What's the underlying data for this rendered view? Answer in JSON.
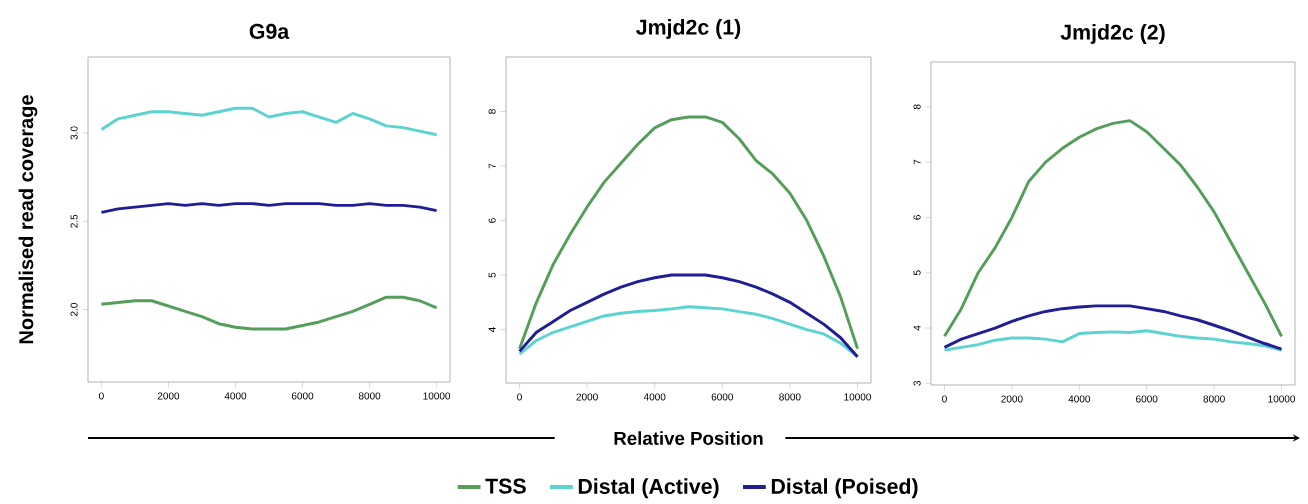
{
  "chart_data": [
    {
      "type": "line",
      "title": "G9a",
      "ylabel": "Normalised read coverage",
      "xlim": [
        -400,
        10400
      ],
      "ylim": [
        1.59,
        3.43
      ],
      "xticks": [
        0,
        2000,
        4000,
        6000,
        8000,
        10000
      ],
      "yticks": [
        {
          "value": 2,
          "label": "2.0"
        },
        {
          "value": 2.5,
          "label": "2.5"
        },
        {
          "value": 3,
          "label": "3.0"
        }
      ],
      "x": [
        0,
        500,
        1000,
        1500,
        2000,
        2500,
        3000,
        3500,
        4000,
        4500,
        5000,
        5500,
        6000,
        6500,
        7000,
        7500,
        8000,
        8500,
        9000,
        9500,
        10000
      ],
      "series": [
        {
          "color": "#559e5a",
          "values": [
            2.03,
            2.04,
            2.05,
            2.05,
            2.02,
            1.99,
            1.96,
            1.92,
            1.9,
            1.89,
            1.89,
            1.89,
            1.91,
            1.93,
            1.96,
            1.99,
            2.03,
            2.07,
            2.07,
            2.05,
            2.01
          ]
        },
        {
          "color": "#5bd3d0",
          "values": [
            3.02,
            3.08,
            3.1,
            3.12,
            3.12,
            3.11,
            3.1,
            3.12,
            3.14,
            3.14,
            3.09,
            3.11,
            3.12,
            3.09,
            3.06,
            3.11,
            3.08,
            3.04,
            3.03,
            3.01,
            2.99
          ]
        },
        {
          "color": "#1f1e96",
          "values": [
            2.55,
            2.57,
            2.58,
            2.59,
            2.6,
            2.59,
            2.6,
            2.59,
            2.6,
            2.6,
            2.59,
            2.6,
            2.6,
            2.6,
            2.59,
            2.59,
            2.6,
            2.59,
            2.59,
            2.58,
            2.56
          ]
        }
      ]
    },
    {
      "type": "line",
      "title": "Jmjd2c (1)",
      "xlabel": "Relative Position",
      "legend": "bottom",
      "xlim": [
        -400,
        10400
      ],
      "ylim": [
        3.02,
        9.0
      ],
      "xticks": [
        0,
        2000,
        4000,
        6000,
        8000,
        10000
      ],
      "yticks": [
        4,
        5,
        6,
        7,
        8
      ],
      "x": [
        0,
        500,
        1000,
        1500,
        2000,
        2500,
        3000,
        3500,
        4000,
        4500,
        5000,
        5500,
        6000,
        6500,
        7000,
        7500,
        8000,
        8500,
        9000,
        9500,
        10000
      ],
      "series": [
        {
          "name": "TSS",
          "color": "#559e5a",
          "values": [
            3.65,
            4.5,
            5.2,
            5.75,
            6.25,
            6.7,
            7.05,
            7.4,
            7.7,
            7.85,
            7.9,
            7.9,
            7.8,
            7.5,
            7.1,
            6.85,
            6.5,
            6.0,
            5.35,
            4.6,
            3.65
          ]
        },
        {
          "name": "Distal (Active)",
          "color": "#5bd3d0",
          "values": [
            3.55,
            3.8,
            3.95,
            4.05,
            4.15,
            4.25,
            4.3,
            4.33,
            4.35,
            4.38,
            4.42,
            4.4,
            4.38,
            4.33,
            4.28,
            4.2,
            4.1,
            4.0,
            3.92,
            3.75,
            3.5
          ]
        },
        {
          "name": "Distal (Poised)",
          "color": "#1f1e96",
          "values": [
            3.6,
            3.95,
            4.15,
            4.35,
            4.5,
            4.65,
            4.78,
            4.88,
            4.95,
            5.0,
            5.0,
            5.0,
            4.95,
            4.88,
            4.78,
            4.65,
            4.5,
            4.3,
            4.1,
            3.85,
            3.5
          ]
        }
      ]
    },
    {
      "type": "line",
      "title": "Jmjd2c (2)",
      "xlim": [
        -400,
        10400
      ],
      "ylim": [
        2.97,
        8.81
      ],
      "xticks": [
        0,
        2000,
        4000,
        6000,
        8000,
        10000
      ],
      "yticks": [
        3,
        4,
        5,
        6,
        7,
        8
      ],
      "x": [
        0,
        500,
        1000,
        1500,
        2000,
        2500,
        3000,
        3500,
        4000,
        4500,
        5000,
        5500,
        6000,
        6500,
        7000,
        7500,
        8000,
        8500,
        9000,
        9500,
        10000
      ],
      "series": [
        {
          "color": "#559e5a",
          "values": [
            3.85,
            4.35,
            5.0,
            5.45,
            6.0,
            6.65,
            7.0,
            7.25,
            7.45,
            7.6,
            7.7,
            7.75,
            7.55,
            7.25,
            6.95,
            6.55,
            6.1,
            5.55,
            5.0,
            4.45,
            3.85
          ]
        },
        {
          "color": "#5bd3d0",
          "values": [
            3.6,
            3.65,
            3.7,
            3.78,
            3.82,
            3.82,
            3.8,
            3.75,
            3.9,
            3.92,
            3.93,
            3.92,
            3.95,
            3.9,
            3.85,
            3.82,
            3.8,
            3.75,
            3.72,
            3.68,
            3.6
          ]
        },
        {
          "color": "#1f1e96",
          "values": [
            3.65,
            3.8,
            3.9,
            4.0,
            4.12,
            4.22,
            4.3,
            4.35,
            4.38,
            4.4,
            4.4,
            4.4,
            4.35,
            4.3,
            4.22,
            4.15,
            4.05,
            3.95,
            3.83,
            3.72,
            3.62
          ]
        }
      ]
    }
  ]
}
